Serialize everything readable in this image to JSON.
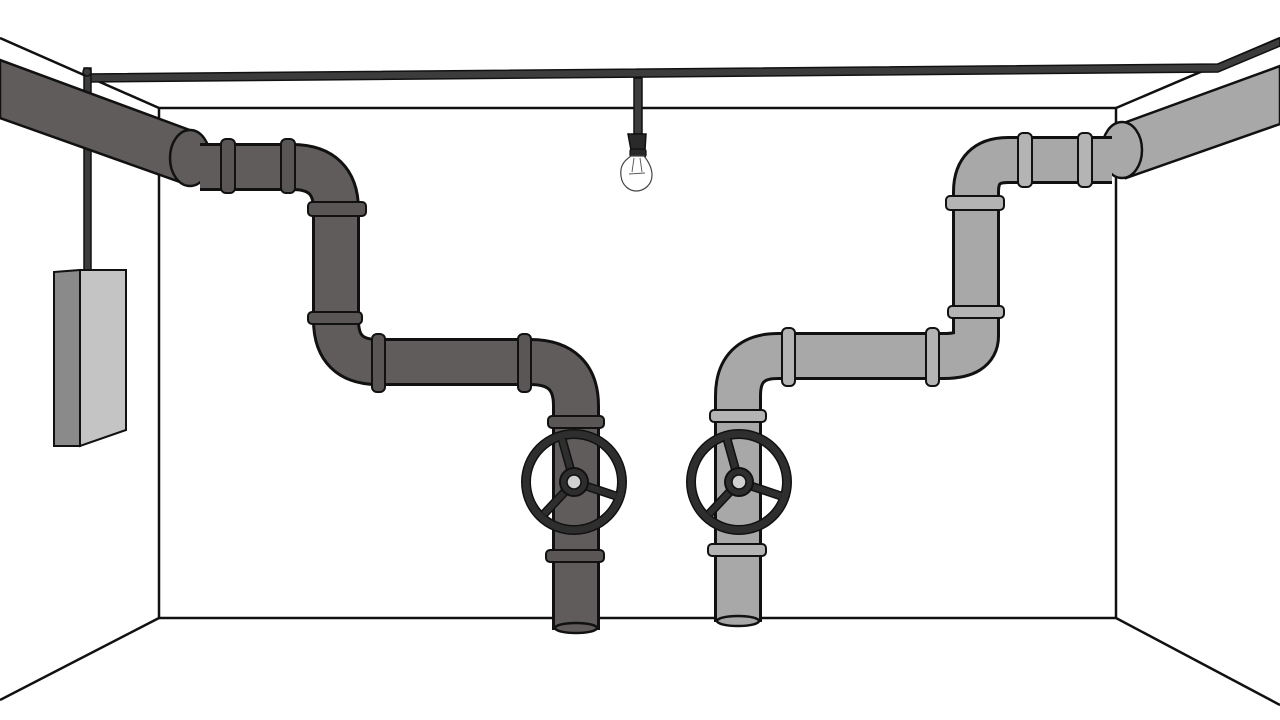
{
  "scene": {
    "type": "basement room with two pipe systems",
    "colors": {
      "background": "#ffffff",
      "outline": "#111111",
      "dark_pipe": "#605c5c",
      "dark_pipe_band": "#5a5656",
      "light_pipe": "#a8a8a8",
      "light_pipe_band": "#b4b4b4",
      "ceiling_rail": "#3c3c3c",
      "valve_wheel": "#2e2e2e",
      "valve_hub": "#d0d0d0",
      "panel_front": "#c4c4c4",
      "panel_side": "#8a8a8a",
      "bulb_glass": "#ffffff",
      "bulb_socket": "#2a2a2a"
    },
    "objects": {
      "light_bulb_icon": "light-bulb-icon",
      "valve_icon": "valve-wheel-icon",
      "panel_icon": "electrical-panel-icon"
    }
  }
}
